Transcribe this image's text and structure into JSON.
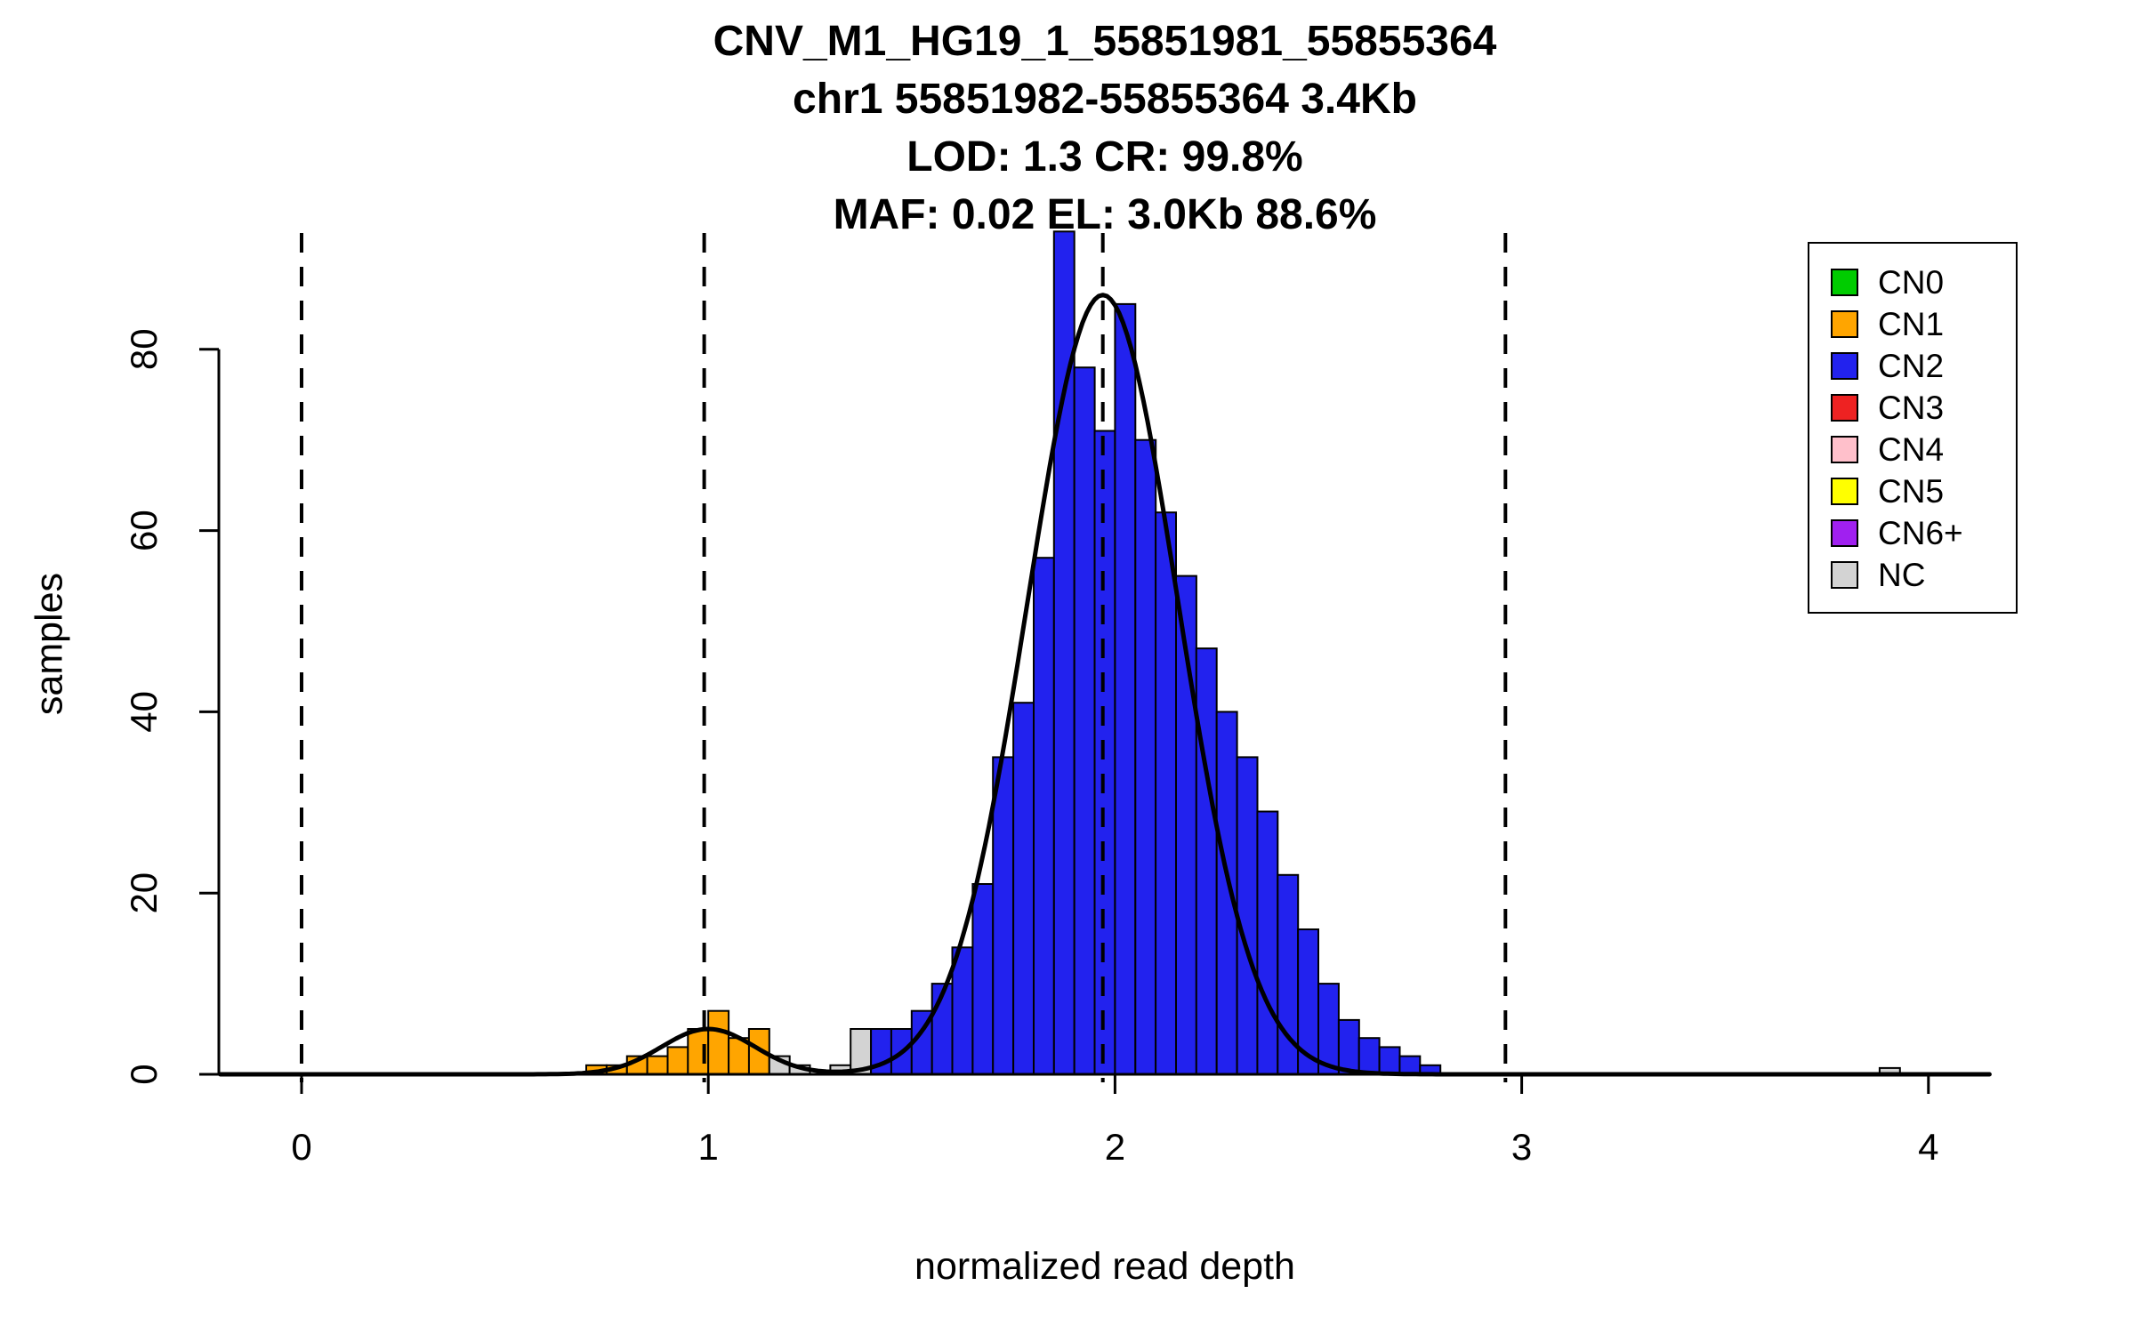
{
  "chart_data": {
    "type": "bar",
    "subtype": "histogram-with-density-fit",
    "title_lines": [
      "CNV_M1_HG19_1_55851981_55855364",
      "chr1 55851982-55855364 3.4Kb",
      "LOD: 1.3 CR: 99.8%",
      "MAF: 0.02 EL: 3.0Kb 88.6%"
    ],
    "xlabel": "normalized read depth",
    "ylabel": "samples",
    "x_ticks": [
      0,
      1,
      2,
      3,
      4
    ],
    "y_ticks": [
      0,
      20,
      40,
      60,
      80
    ],
    "xlim": [
      -0.2,
      4.15
    ],
    "ylim": [
      0,
      95
    ],
    "grid": false,
    "bin_width": 0.05,
    "bars": [
      {
        "x": 0.7,
        "h": 1,
        "cn": "CN1"
      },
      {
        "x": 0.75,
        "h": 1,
        "cn": "CN1"
      },
      {
        "x": 0.8,
        "h": 2,
        "cn": "CN1"
      },
      {
        "x": 0.85,
        "h": 2,
        "cn": "CN1"
      },
      {
        "x": 0.9,
        "h": 3,
        "cn": "CN1"
      },
      {
        "x": 0.95,
        "h": 5,
        "cn": "CN1"
      },
      {
        "x": 1.0,
        "h": 7,
        "cn": "CN1"
      },
      {
        "x": 1.05,
        "h": 4,
        "cn": "CN1"
      },
      {
        "x": 1.1,
        "h": 5,
        "cn": "CN1"
      },
      {
        "x": 1.15,
        "h": 2,
        "cn": "NC"
      },
      {
        "x": 1.2,
        "h": 1,
        "cn": "NC"
      },
      {
        "x": 1.3,
        "h": 1,
        "cn": "NC"
      },
      {
        "x": 1.35,
        "h": 5,
        "cn": "NC"
      },
      {
        "x": 1.4,
        "h": 5,
        "cn": "CN2"
      },
      {
        "x": 1.45,
        "h": 5,
        "cn": "CN2"
      },
      {
        "x": 1.5,
        "h": 7,
        "cn": "CN2"
      },
      {
        "x": 1.55,
        "h": 10,
        "cn": "CN2"
      },
      {
        "x": 1.6,
        "h": 14,
        "cn": "CN2"
      },
      {
        "x": 1.65,
        "h": 21,
        "cn": "CN2"
      },
      {
        "x": 1.7,
        "h": 35,
        "cn": "CN2"
      },
      {
        "x": 1.75,
        "h": 41,
        "cn": "CN2"
      },
      {
        "x": 1.8,
        "h": 57,
        "cn": "CN2"
      },
      {
        "x": 1.85,
        "h": 93,
        "cn": "CN2"
      },
      {
        "x": 1.9,
        "h": 78,
        "cn": "CN2"
      },
      {
        "x": 1.95,
        "h": 71,
        "cn": "CN2"
      },
      {
        "x": 2.0,
        "h": 85,
        "cn": "CN2"
      },
      {
        "x": 2.05,
        "h": 70,
        "cn": "CN2"
      },
      {
        "x": 2.1,
        "h": 62,
        "cn": "CN2"
      },
      {
        "x": 2.15,
        "h": 55,
        "cn": "CN2"
      },
      {
        "x": 2.2,
        "h": 47,
        "cn": "CN2"
      },
      {
        "x": 2.25,
        "h": 40,
        "cn": "CN2"
      },
      {
        "x": 2.3,
        "h": 35,
        "cn": "CN2"
      },
      {
        "x": 2.35,
        "h": 29,
        "cn": "CN2"
      },
      {
        "x": 2.4,
        "h": 22,
        "cn": "CN2"
      },
      {
        "x": 2.45,
        "h": 16,
        "cn": "CN2"
      },
      {
        "x": 2.5,
        "h": 10,
        "cn": "CN2"
      },
      {
        "x": 2.55,
        "h": 6,
        "cn": "CN2"
      },
      {
        "x": 2.6,
        "h": 4,
        "cn": "CN2"
      },
      {
        "x": 2.65,
        "h": 3,
        "cn": "CN2"
      },
      {
        "x": 2.7,
        "h": 2,
        "cn": "CN2"
      },
      {
        "x": 2.75,
        "h": 1,
        "cn": "CN2"
      },
      {
        "x": 3.88,
        "h": 0.7,
        "cn": "NC"
      }
    ],
    "dashed_lines_x": [
      0,
      0.99,
      1.97,
      2.96
    ],
    "curve_components": [
      {
        "mu": 1.0,
        "sigma": 0.115,
        "amp": 5
      },
      {
        "mu": 1.97,
        "sigma": 0.185,
        "amp": 86
      }
    ],
    "colors": {
      "CN0": "#00CC00",
      "CN1": "#FFA500",
      "CN2": "#2222EE",
      "CN3": "#EE2222",
      "CN4": "#FFC0CB",
      "CN5": "#FFFF00",
      "CN6+": "#A020F0",
      "NC": "#D3D3D3"
    },
    "legend": {
      "position": "top-right",
      "entries": [
        "CN0",
        "CN1",
        "CN2",
        "CN3",
        "CN4",
        "CN5",
        "CN6+",
        "NC"
      ]
    }
  }
}
